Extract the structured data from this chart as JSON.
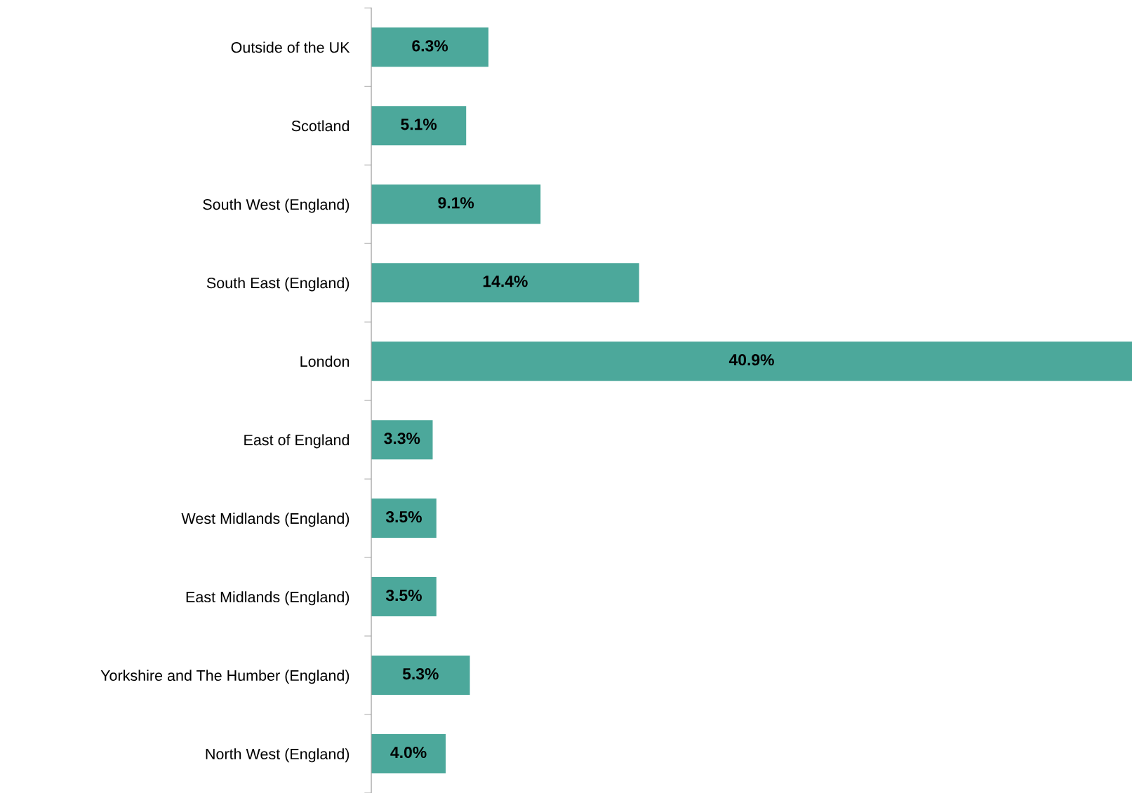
{
  "chart_data": {
    "type": "bar",
    "orientation": "horizontal",
    "categories": [
      "Outside of the UK",
      "Scotland",
      "South West (England)",
      "South East (England)",
      "London",
      "East of England",
      "West Midlands (England)",
      "East Midlands (England)",
      "Yorkshire and The Humber (England)",
      "North West (England)"
    ],
    "values": [
      6.3,
      5.1,
      9.1,
      14.4,
      40.9,
      3.3,
      3.5,
      3.5,
      5.3,
      4.0
    ],
    "value_labels": [
      "6.3%",
      "5.1%",
      "9.1%",
      "14.4%",
      "40.9%",
      "3.3%",
      "3.5%",
      "3.5%",
      "5.3%",
      "4.0%"
    ],
    "color": "#4ca89b",
    "grid": false,
    "legend": false
  }
}
